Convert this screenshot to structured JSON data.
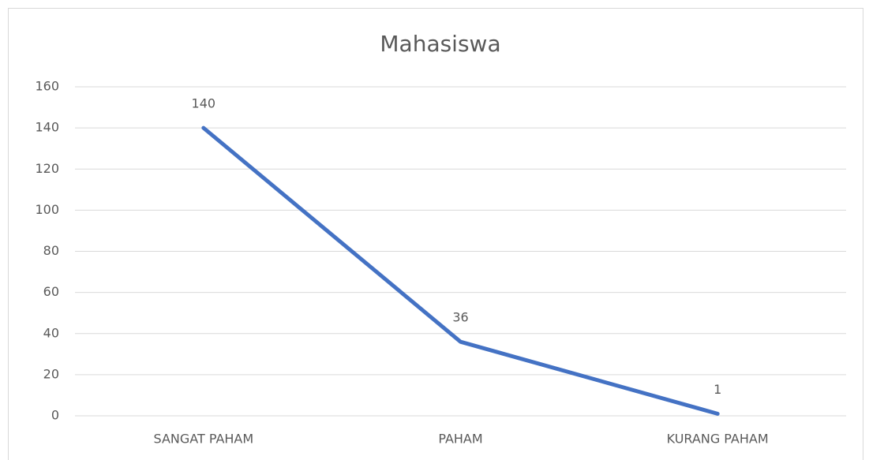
{
  "chart_data": {
    "type": "line",
    "title": "Mahasiswa",
    "categories": [
      "SANGAT PAHAM",
      "PAHAM",
      "KURANG PAHAM"
    ],
    "values": [
      140,
      36,
      1
    ],
    "color": "#4472c4",
    "ylim": [
      0,
      160
    ],
    "yticks": [
      0,
      20,
      40,
      60,
      80,
      100,
      120,
      140,
      160
    ],
    "grid": true
  }
}
